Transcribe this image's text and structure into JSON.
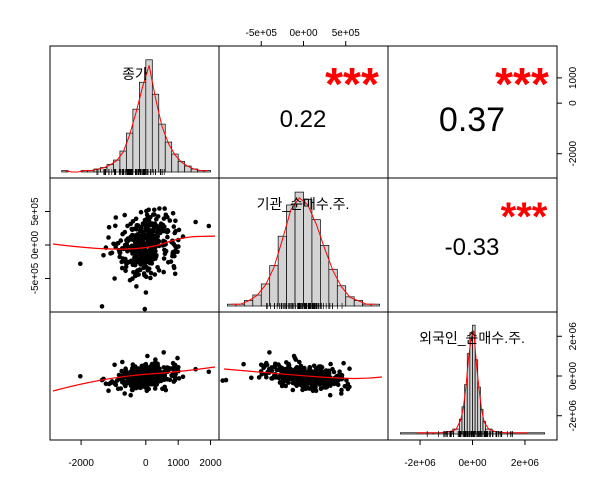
{
  "chart_data": {
    "type": "scatter-matrix",
    "variables": [
      "종가",
      "기관_순매수.주.",
      "외국인_순매수.주."
    ],
    "panels": {
      "p12": {
        "r": "0.22",
        "stars": "***"
      },
      "p13": {
        "r": "0.37",
        "stars": "***"
      },
      "p23": {
        "r": "-0.33",
        "stars": "***"
      }
    },
    "axes": {
      "var1": {
        "range": [
          -2700,
          2000
        ],
        "ticks": [
          {
            "v": -2000,
            "label": "-2000"
          },
          {
            "v": 0,
            "label": "0"
          },
          {
            "v": 1000,
            "label": "1000"
          },
          {
            "v": 2000,
            "label": "2000"
          }
        ],
        "yticks": [
          {
            "v": -2000,
            "label": "-2000"
          },
          {
            "v": 0,
            "label": "0"
          },
          {
            "v": 1000,
            "label": "1000"
          }
        ]
      },
      "var2": {
        "range": [
          -900000,
          900000
        ],
        "ticks": [
          {
            "v": -500000,
            "label": "-5e+05"
          },
          {
            "v": 0,
            "label": "0e+00"
          },
          {
            "v": 500000,
            "label": "5e+05"
          }
        ]
      },
      "var3": {
        "range": [
          -2900000,
          2900000
        ],
        "ticks": [
          {
            "v": -2000000,
            "label": "-2e+06"
          },
          {
            "v": 0,
            "label": "0e+00"
          },
          {
            "v": 2000000,
            "label": "2e+06"
          }
        ]
      }
    },
    "histograms": {
      "var1": {
        "bins": [
          -2600,
          -2400,
          -2200,
          -2000,
          -1800,
          -1600,
          -1400,
          -1200,
          -1000,
          -800,
          -600,
          -400,
          -200,
          0,
          200,
          400,
          600,
          800,
          1000,
          1200,
          1400,
          1600,
          1800,
          2000
        ],
        "counts": [
          1,
          0,
          0,
          1,
          1,
          2,
          3,
          5,
          8,
          14,
          26,
          42,
          60,
          75,
          52,
          32,
          20,
          12,
          7,
          4,
          2,
          1,
          1
        ]
      },
      "var2": {
        "bins": [
          -900000,
          -800000,
          -700000,
          -600000,
          -500000,
          -400000,
          -300000,
          -200000,
          -100000,
          0,
          100000,
          200000,
          300000,
          400000,
          500000,
          600000,
          700000,
          800000,
          900000
        ],
        "counts": [
          1,
          1,
          3,
          6,
          12,
          22,
          38,
          55,
          62,
          58,
          47,
          33,
          20,
          11,
          5,
          3,
          1,
          1
        ]
      },
      "var3": {
        "bins": [
          -2750000,
          -1500000,
          -1000000,
          -750000,
          -500000,
          -400000,
          -300000,
          -200000,
          -100000,
          0,
          100000,
          200000,
          300000,
          400000,
          500000,
          750000,
          1000000,
          1500000,
          2750000
        ],
        "counts": [
          1,
          1,
          2,
          4,
          12,
          22,
          40,
          65,
          82,
          88,
          60,
          38,
          20,
          10,
          4,
          2,
          1,
          1
        ]
      }
    }
  }
}
